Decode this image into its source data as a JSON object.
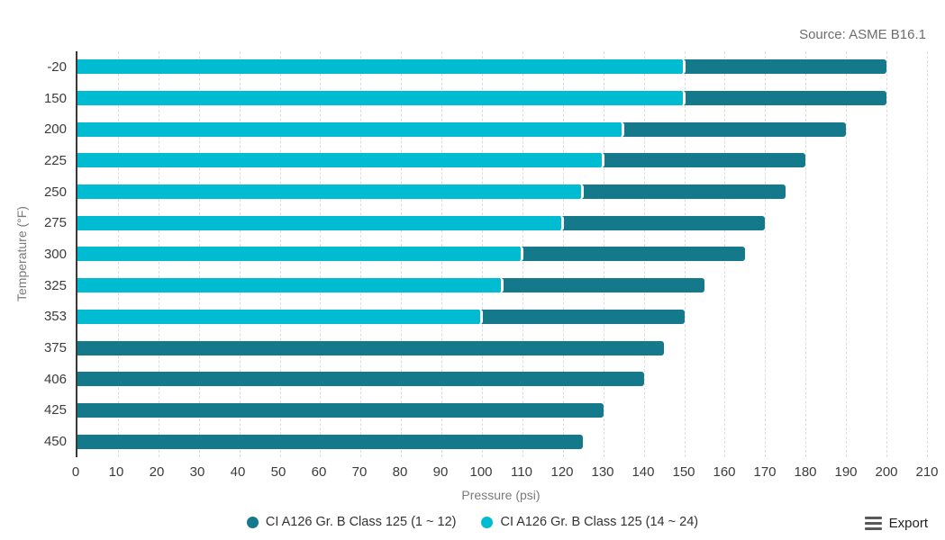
{
  "source_note": "Source: ASME B16.1",
  "chart_data": {
    "type": "bar",
    "orientation": "horizontal",
    "title": "",
    "xlabel": "Pressure (psi)",
    "ylabel": "Temperature (°F)",
    "xlim": [
      0,
      210
    ],
    "x_tick_interval": 10,
    "grid": "vertical-dashed",
    "legend_position": "bottom-center",
    "categories": [
      "-20",
      "150",
      "200",
      "225",
      "250",
      "275",
      "300",
      "325",
      "353",
      "375",
      "406",
      "425",
      "450"
    ],
    "series": [
      {
        "name": "CI A126 Gr. B Class 125 (1 ~ 12)",
        "color": "#14798a",
        "values": [
          200,
          200,
          190,
          180,
          175,
          170,
          165,
          155,
          150,
          145,
          140,
          130,
          125
        ]
      },
      {
        "name": "CI A126 Gr. B Class 125 (14 ~ 24)",
        "color": "#00bcd2",
        "values": [
          150,
          150,
          135,
          130,
          125,
          120,
          110,
          105,
          100,
          null,
          null,
          null,
          null
        ]
      }
    ]
  },
  "export": {
    "label": "Export"
  }
}
